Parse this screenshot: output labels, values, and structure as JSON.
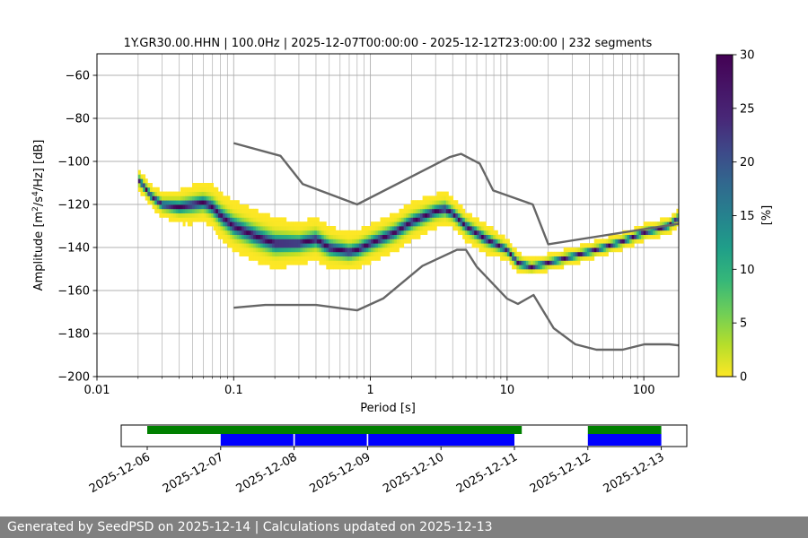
{
  "chart_data": {
    "type": "heatmap",
    "title": "1Y.GR30.00.HHN | 100.0Hz | 2025-12-07T00:00:00 - 2025-12-12T23:00:00 | 232 segments",
    "xlabel": "Period [s]",
    "ylabel_parts": [
      "Amplitude [m",
      "2",
      "/s",
      "4",
      "/Hz] [dB]"
    ],
    "x_scale": "log",
    "xlim": [
      0.01,
      180
    ],
    "ylim": [
      -200,
      -50
    ],
    "grid": true,
    "x_ticks": [
      {
        "value": 0.01,
        "label": "0.01"
      },
      {
        "value": 0.1,
        "label": "0.1"
      },
      {
        "value": 1,
        "label": "1"
      },
      {
        "value": 10,
        "label": "10"
      },
      {
        "value": 100,
        "label": "100"
      }
    ],
    "y_ticks": [
      {
        "value": -60,
        "label": "−60"
      },
      {
        "value": -80,
        "label": "−80"
      },
      {
        "value": -100,
        "label": "−100"
      },
      {
        "value": -120,
        "label": "−120"
      },
      {
        "value": -140,
        "label": "−140"
      },
      {
        "value": -160,
        "label": "−160"
      },
      {
        "value": -180,
        "label": "−180"
      },
      {
        "value": -200,
        "label": "−200"
      }
    ],
    "colorbar": {
      "label": "[%]",
      "range": [
        0,
        30
      ],
      "ticks": [
        {
          "value": 0,
          "label": "0"
        },
        {
          "value": 5,
          "label": "5"
        },
        {
          "value": 10,
          "label": "10"
        },
        {
          "value": 15,
          "label": "15"
        },
        {
          "value": 20,
          "label": "20"
        },
        {
          "value": 25,
          "label": "25"
        },
        {
          "value": 30,
          "label": "30"
        }
      ],
      "colormap": "viridis_r"
    },
    "psd_mode": {
      "periods": [
        0.02,
        0.025,
        0.03,
        0.04,
        0.05,
        0.06,
        0.07,
        0.08,
        0.1,
        0.15,
        0.2,
        0.3,
        0.4,
        0.5,
        0.7,
        0.8,
        1.0,
        1.5,
        2.0,
        3.0,
        3.5,
        4.0,
        5.0,
        7.0,
        10.0,
        12.0,
        15.0,
        20.0,
        30.0,
        50.0,
        70.0,
        100.0,
        150.0,
        180.0
      ],
      "center_db": [
        -108,
        -116,
        -120,
        -121,
        -120,
        -119,
        -121,
        -125,
        -130,
        -135,
        -138,
        -138,
        -136,
        -140,
        -142,
        -141,
        -138,
        -133,
        -128,
        -123,
        -122,
        -124,
        -130,
        -136,
        -141,
        -147,
        -149,
        -147,
        -144,
        -140,
        -137,
        -133,
        -130,
        -126
      ],
      "spread_db": [
        5,
        5,
        6,
        8,
        9,
        9,
        10,
        11,
        12,
        12,
        12,
        10,
        10,
        10,
        9,
        9,
        9,
        9,
        9,
        8,
        8,
        7,
        7,
        7,
        5,
        5,
        4,
        4,
        4,
        4,
        4,
        4,
        4,
        4
      ]
    },
    "noise_models": [
      {
        "key": "high",
        "periods": [
          0.1,
          0.22,
          0.32,
          0.8,
          3.8,
          4.6,
          6.3,
          7.9,
          15.4,
          20.0,
          354.8
        ],
        "db": [
          -91.5,
          -97.4,
          -110.5,
          -120.0,
          -98.0,
          -96.5,
          -101.0,
          -113.5,
          -120.0,
          -138.5,
          -126.0
        ]
      },
      {
        "key": "low",
        "periods": [
          0.1,
          0.17,
          0.4,
          0.8,
          1.24,
          2.4,
          4.3,
          5.0,
          6.0,
          10.0,
          12.0,
          15.6,
          21.9,
          31.6,
          45.0,
          70.0,
          101.0,
          154.0,
          180.0
        ],
        "db": [
          -168.0,
          -166.7,
          -166.7,
          -169.2,
          -163.7,
          -148.6,
          -141.1,
          -141.1,
          -149.0,
          -163.8,
          -166.2,
          -162.1,
          -177.5,
          -185.0,
          -187.5,
          -187.5,
          -185.0,
          -185.0,
          -185.5
        ]
      }
    ],
    "data_availability": {
      "x_range": [
        "2025-12-06",
        "2025-12-13"
      ],
      "x_ticks": [
        "2025-12-06",
        "2025-12-07",
        "2025-12-08",
        "2025-12-09",
        "2025-12-10",
        "2025-12-11",
        "2025-12-12",
        "2025-12-13"
      ],
      "green_bars": [
        {
          "start_day": 0.0,
          "end_day": 5.1
        },
        {
          "start_day": 6.0,
          "end_day": 7.0
        }
      ],
      "blue_bars": [
        {
          "start_day": 1.0,
          "end_day": 1.99
        },
        {
          "start_day": 2.01,
          "end_day": 2.99
        },
        {
          "start_day": 3.01,
          "end_day": 5.0
        },
        {
          "start_day": 6.0,
          "end_day": 7.0
        }
      ],
      "colors": {
        "green": "#008000",
        "blue": "#0000ff"
      }
    }
  },
  "footer": {
    "text": "Generated by SeedPSD on 2025-12-14 | Calculations updated on 2025-12-13"
  }
}
